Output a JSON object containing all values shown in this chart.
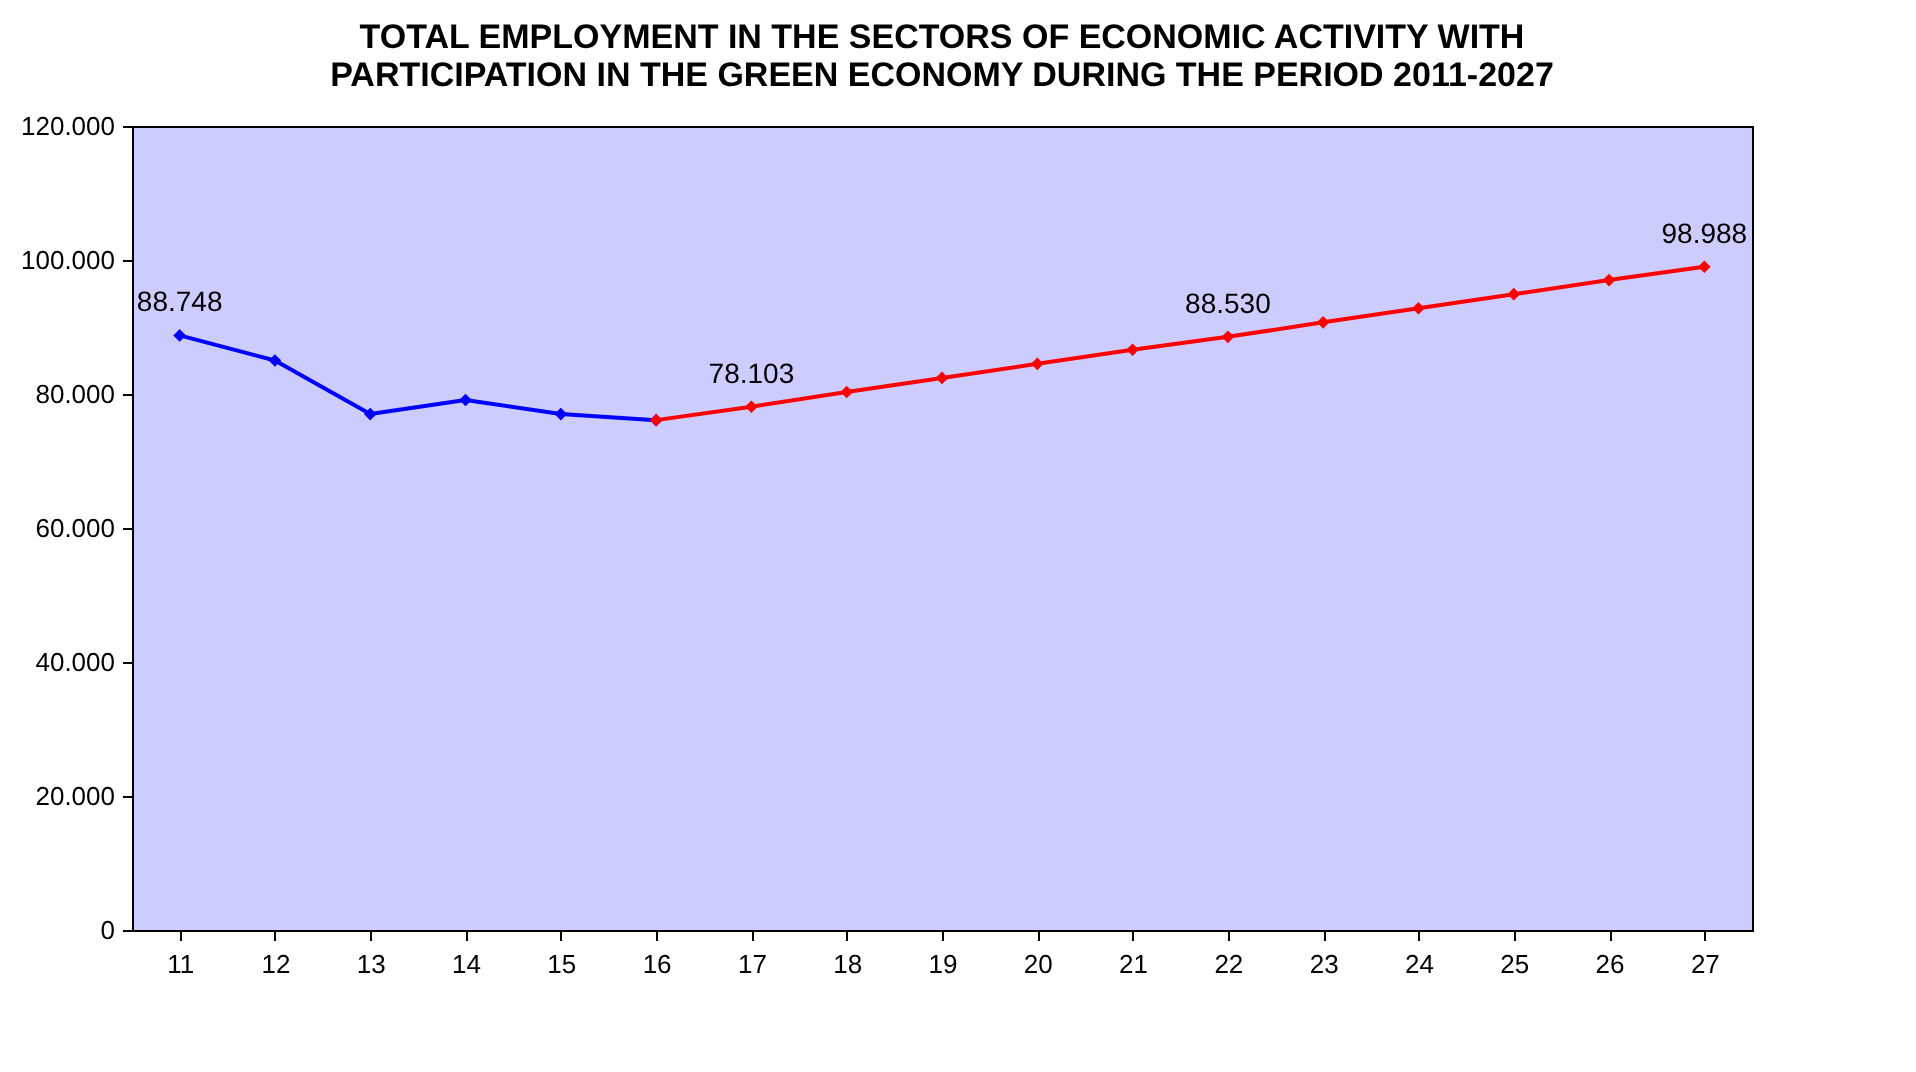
{
  "chart_data": {
    "type": "line",
    "title": "TOTAL EMPLOYMENT IN THE SECTORS OF ECONOMIC ACTIVITY WITH PARTICIPATION IN THE GREEN ECONOMY DURING THE PERIOD 2011-2027",
    "categories": [
      "11",
      "12",
      "13",
      "14",
      "15",
      "16",
      "17",
      "18",
      "19",
      "20",
      "21",
      "22",
      "23",
      "24",
      "25",
      "26",
      "27"
    ],
    "series": [
      {
        "color": "#0000ff",
        "values": [
          88748,
          85000,
          77000,
          79100,
          77000,
          76100,
          null,
          null,
          null,
          null,
          null,
          null,
          null,
          null,
          null,
          null,
          null
        ],
        "value_labels": [
          "88.748",
          null,
          null,
          null,
          null,
          null,
          null,
          null,
          null,
          null,
          null,
          null,
          null,
          null,
          null,
          null,
          null
        ]
      },
      {
        "color": "#ff0000",
        "values": [
          null,
          null,
          null,
          null,
          null,
          76100,
          78103,
          80300,
          82400,
          84500,
          86600,
          88530,
          90700,
          92800,
          94900,
          97000,
          98988
        ],
        "value_labels": [
          null,
          null,
          null,
          null,
          null,
          null,
          "78.103",
          null,
          null,
          null,
          null,
          "88.530",
          null,
          null,
          null,
          null,
          "98.988"
        ]
      }
    ],
    "ylim": [
      0,
      120000
    ],
    "yticks": [
      0,
      {
        "value": 20000,
        "label": "20.000"
      },
      {
        "value": 40000,
        "label": "40.000"
      },
      {
        "value": 60000,
        "label": "60.000"
      },
      {
        "value": 80000,
        "label": "80.000"
      },
      {
        "value": 100000,
        "label": "100.000"
      },
      {
        "value": 120000,
        "label": "120.000"
      }
    ],
    "marker": "diamond",
    "line_style": "solid"
  }
}
